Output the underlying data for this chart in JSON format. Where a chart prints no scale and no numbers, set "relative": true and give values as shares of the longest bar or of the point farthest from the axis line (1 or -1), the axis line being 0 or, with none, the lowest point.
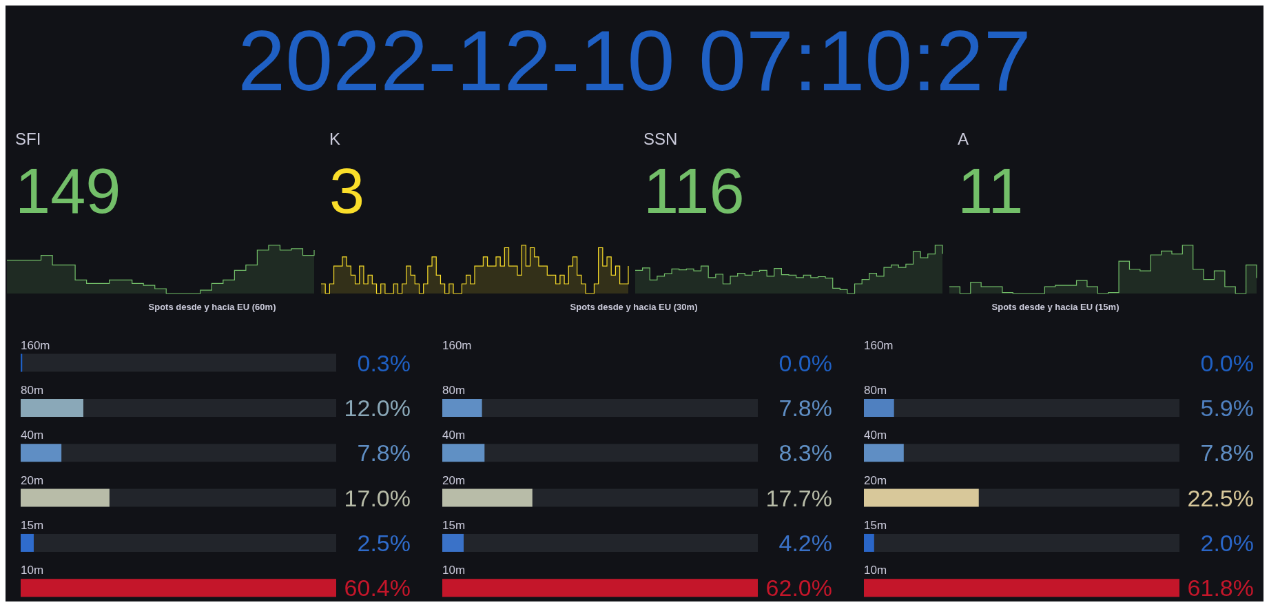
{
  "chart_data": [
    {
      "type": "other",
      "title": "2022-12-10 07:10:27"
    },
    {
      "type": "area",
      "title": "SFI",
      "annotations": [
        "149"
      ],
      "relative": true,
      "categories": [
        null,
        null,
        null,
        null,
        null,
        null,
        null,
        null,
        null,
        null,
        null,
        null,
        null,
        null,
        null,
        null,
        null,
        null,
        null,
        null,
        null,
        null,
        null,
        null,
        null,
        null,
        null,
        null
      ],
      "series": [
        {
          "color": "#73bf69",
          "values": [
            0.69,
            0.69,
            0.69,
            0.79,
            0.59,
            0.59,
            0.28,
            0.21,
            0.21,
            0.28,
            0.28,
            0.21,
            0.17,
            0.1,
            0,
            0,
            0,
            0.07,
            0.21,
            0.28,
            0.48,
            0.59,
            0.9,
            1,
            0.9,
            0.93,
            0.79,
            0.9
          ]
        }
      ]
    },
    {
      "type": "area",
      "title": "K",
      "annotations": [
        "3"
      ],
      "relative": true,
      "categories": [
        null,
        null,
        null,
        null,
        null,
        null,
        null,
        null,
        null,
        null,
        null,
        null,
        null,
        null,
        null,
        null,
        null,
        null,
        null,
        null,
        null,
        null,
        null,
        null,
        null,
        null,
        null,
        null,
        null,
        null,
        null,
        null,
        null,
        null,
        null,
        null,
        null,
        null,
        null,
        null,
        null,
        null,
        null,
        null,
        null,
        null,
        null,
        null,
        null,
        null,
        null,
        null,
        null,
        null,
        null,
        null,
        null,
        null,
        null,
        null,
        null,
        null,
        null,
        null,
        null,
        null,
        null,
        null,
        null,
        null,
        null,
        null,
        null
      ],
      "series": [
        {
          "color": "#fade2a",
          "values": [
            0.2,
            0,
            0.2,
            0.57,
            0.57,
            0.76,
            0.57,
            0.38,
            0.2,
            0.57,
            0.2,
            0.38,
            0.2,
            0,
            0.2,
            0,
            0,
            0.2,
            0,
            0.2,
            0.57,
            0.38,
            0.2,
            0,
            0.2,
            0.57,
            0.76,
            0.38,
            0.2,
            0,
            0.2,
            0,
            0,
            0.2,
            0.38,
            0.2,
            0.57,
            0.57,
            0.76,
            0.57,
            0.57,
            0.76,
            0.57,
            0.95,
            0.57,
            0.57,
            0.38,
            1,
            0.57,
            0.95,
            0.76,
            0.57,
            0.57,
            0.38,
            0.38,
            0.2,
            0.38,
            0.2,
            0.57,
            0.76,
            0.38,
            0.2,
            0,
            0,
            0.2,
            0.95,
            0.57,
            0.76,
            0.38,
            0.57,
            0.2,
            0.2,
            0.57
          ]
        }
      ]
    },
    {
      "type": "area",
      "title": "SSN",
      "annotations": [
        "116"
      ],
      "relative": true,
      "categories": [
        null,
        null,
        null,
        null,
        null,
        null,
        null,
        null,
        null,
        null,
        null,
        null,
        null,
        null,
        null,
        null,
        null,
        null,
        null,
        null,
        null,
        null,
        null,
        null,
        null,
        null,
        null,
        null,
        null,
        null,
        null,
        null,
        null,
        null,
        null,
        null,
        null,
        null,
        null,
        null,
        null,
        null,
        null
      ],
      "series": [
        {
          "color": "#73bf69",
          "values": [
            0.48,
            0.53,
            0.28,
            0.36,
            0.41,
            0.51,
            0.49,
            0.51,
            0.47,
            0.57,
            0.33,
            0.4,
            0.2,
            0.36,
            0.42,
            0.38,
            0.45,
            0.48,
            0.36,
            0.52,
            0.39,
            0.38,
            0.33,
            0.38,
            0.33,
            0.35,
            0.32,
            0.11,
            0.08,
            0,
            0.2,
            0.29,
            0.42,
            0.36,
            0.54,
            0.59,
            0.54,
            0.61,
            0.87,
            0.74,
            0.82,
            1,
            0.82
          ]
        }
      ]
    },
    {
      "type": "area",
      "title": "A",
      "annotations": [
        "11"
      ],
      "relative": true,
      "categories": [
        null,
        null,
        null,
        null,
        null,
        null,
        null,
        null,
        null,
        null,
        null,
        null,
        null,
        null,
        null,
        null,
        null,
        null,
        null,
        null,
        null,
        null,
        null,
        null,
        null,
        null,
        null,
        null,
        null,
        null
      ],
      "series": [
        {
          "color": "#73bf69",
          "values": [
            0.14,
            0,
            0.23,
            0.14,
            0.14,
            0.02,
            0,
            0,
            0,
            0.14,
            0.17,
            0.17,
            0.27,
            0.14,
            0,
            0.02,
            0.67,
            0.5,
            0.47,
            0.8,
            0.88,
            0.82,
            1,
            0.5,
            0.29,
            0.47,
            0.14,
            0,
            0.59,
            0.32
          ]
        }
      ]
    },
    {
      "type": "bar",
      "orientation": "horizontal",
      "title": "Spots desde y hacia EU (60m)",
      "categories": [
        "160m",
        "80m",
        "40m",
        "20m",
        "15m",
        "10m"
      ],
      "values": [
        0.3,
        12.0,
        7.8,
        17.0,
        2.5,
        60.4
      ],
      "value_labels": [
        "0.3%",
        "12.0%",
        "7.8%",
        "17.0%",
        "2.5%",
        "60.4%"
      ],
      "colors": [
        "#1f60c4",
        "#8aa8b8",
        "#5f8ec4",
        "#b8bca8",
        "#2f6ccc",
        "#c4162a"
      ]
    },
    {
      "type": "bar",
      "orientation": "horizontal",
      "title": "Spots desde y hacia EU (30m)",
      "categories": [
        "160m",
        "80m",
        "40m",
        "20m",
        "15m",
        "10m"
      ],
      "values": [
        0.0,
        7.8,
        8.3,
        17.7,
        4.2,
        62.0
      ],
      "value_labels": [
        "0.0%",
        "7.8%",
        "8.3%",
        "17.7%",
        "4.2%",
        "62.0%"
      ],
      "colors": [
        "#1f60c4",
        "#5f8ec4",
        "#6090c4",
        "#b8bca8",
        "#3a72c8",
        "#c4162a"
      ]
    },
    {
      "type": "bar",
      "orientation": "horizontal",
      "title": "Spots desde y hacia EU (15m)",
      "categories": [
        "160m",
        "80m",
        "40m",
        "20m",
        "15m",
        "10m"
      ],
      "values": [
        0.0,
        5.9,
        7.8,
        22.5,
        2.0,
        61.8
      ],
      "value_labels": [
        "0.0%",
        "5.9%",
        "7.8%",
        "22.5%",
        "2.0%",
        "61.8%"
      ],
      "colors": [
        "#1f60c4",
        "#4f80c0",
        "#5f8ec4",
        "#d8c89a",
        "#2a66c8",
        "#c4162a"
      ]
    }
  ]
}
